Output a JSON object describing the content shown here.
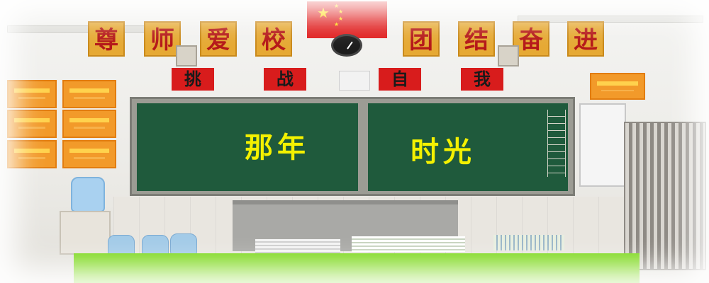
{
  "banner_left": [
    "尊",
    "师",
    "爱",
    "校"
  ],
  "banner_right": [
    "团",
    "结",
    "奋",
    "进"
  ],
  "red_slogan": [
    "挑",
    "战",
    "自",
    "我"
  ],
  "board_text_left": "那年",
  "board_text_right": "时光",
  "colors": {
    "chalkboard": "#1f5a3c",
    "chalk_text": "#f4f100",
    "green_band": "#7dd81c",
    "flag_red": "#e02020"
  }
}
